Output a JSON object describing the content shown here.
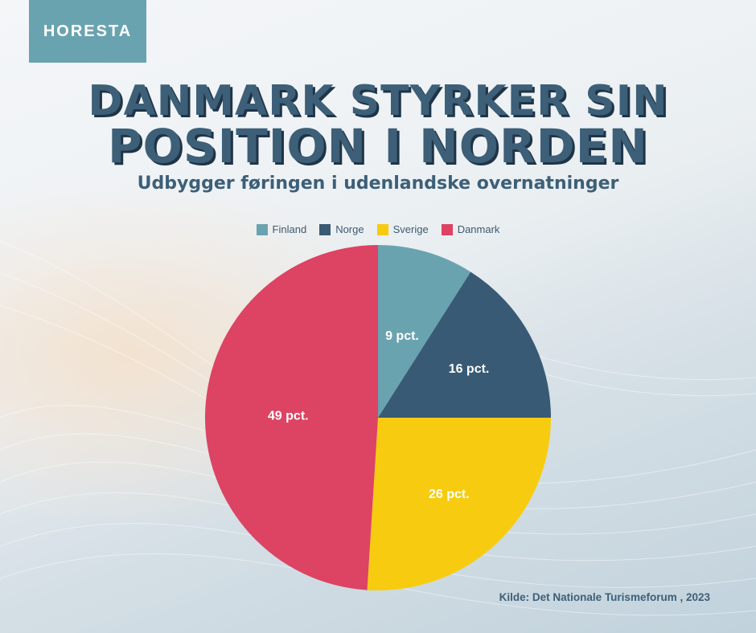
{
  "brand": {
    "logo_text": "HORESTA",
    "logo_color": "#6aa3b0"
  },
  "title": {
    "line1": "DANMARK STYRKER SIN",
    "line2": "POSITION I NORDEN"
  },
  "subtitle": "Udbygger føringen i udenlandske overnatninger",
  "source": "Kilde: Det Nationale Turismeforum , 2023",
  "chart_data": {
    "type": "pie",
    "title": "DANMARK STYRKER SIN POSITION I NORDEN",
    "subtitle": "Udbygger føringen i udenlandske overnatninger",
    "legend_position": "top",
    "categories": [
      "Finland",
      "Norge",
      "Sverige",
      "Danmark"
    ],
    "values": [
      9,
      16,
      26,
      49
    ],
    "labels": [
      "9 pct.",
      "16 pct.",
      "26 pct.",
      "49 pct."
    ],
    "colors": [
      "#6aa3b0",
      "#385a74",
      "#f7cc10",
      "#dd4363"
    ]
  }
}
